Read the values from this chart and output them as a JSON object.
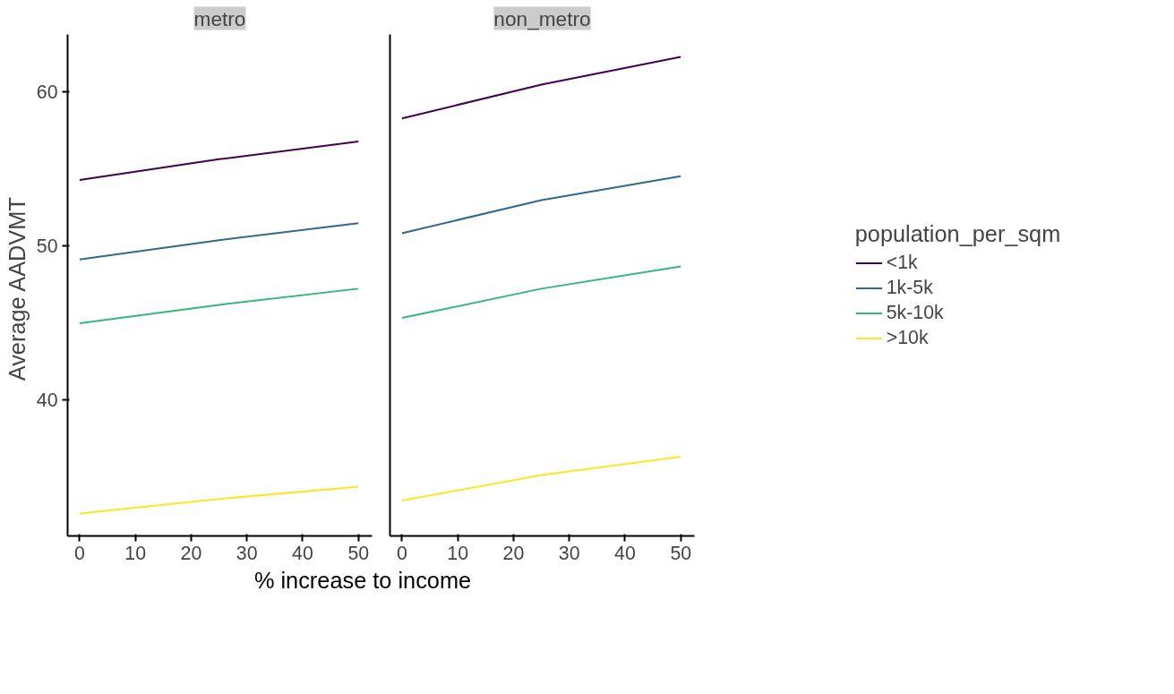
{
  "chart_data": [
    {
      "type": "line",
      "title": "metro",
      "ylabel": "Average  AADVMT",
      "xlabel": "% increase to  income",
      "x": [
        0,
        25,
        50
      ],
      "xlim": [
        -2.15,
        52.45
      ],
      "xticks": [
        0,
        10,
        20,
        30,
        40,
        50
      ],
      "ylim": [
        31.15,
        63.7
      ],
      "yticks": [
        40,
        50,
        60
      ],
      "grid": false,
      "series": [
        {
          "color": "#440154",
          "values": [
            54.25,
            55.6,
            56.75
          ]
        },
        {
          "color": "#31688e",
          "values": [
            49.1,
            50.35,
            51.45
          ]
        },
        {
          "color": "#35b779",
          "values": [
            44.95,
            46.15,
            47.2
          ]
        },
        {
          "color": "#fde725",
          "values": [
            32.6,
            33.55,
            34.35
          ]
        }
      ]
    },
    {
      "type": "line",
      "title": "non_metro",
      "legend_title": "population_per_sqm",
      "x": [
        0,
        25,
        50
      ],
      "xlim": [
        -2.15,
        52.45
      ],
      "xticks": [
        0,
        10,
        20,
        30,
        40,
        50
      ],
      "ylim": [
        31.15,
        63.7
      ],
      "yticks": [
        40,
        50,
        60
      ],
      "grid": false,
      "legend": "right",
      "tick_labels": "x",
      "series": [
        {
          "name": "<1k",
          "color": "#440154",
          "values": [
            58.25,
            60.45,
            62.25
          ]
        },
        {
          "name": "1k-5k",
          "color": "#31688e",
          "values": [
            50.8,
            52.95,
            54.5
          ]
        },
        {
          "name": "5k-10k",
          "color": "#35b779",
          "values": [
            45.3,
            47.2,
            48.65
          ]
        },
        {
          "name": ">10k",
          "color": "#fde725",
          "values": [
            33.45,
            35.1,
            36.3
          ]
        }
      ]
    }
  ]
}
